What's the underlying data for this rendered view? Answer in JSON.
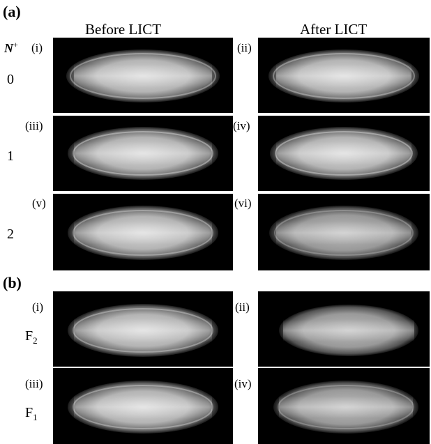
{
  "figure": {
    "panel_a": {
      "letter": "(a)",
      "column_headers": {
        "before": "Before LICT",
        "after": "After LICT"
      },
      "row_axis_label": {
        "main": "N",
        "sup": "+"
      },
      "rows": [
        {
          "value": "0",
          "left_tag": "(i)",
          "right_tag": "(ii)"
        },
        {
          "value": "1",
          "left_tag": "(iii)",
          "right_tag": "(iv)"
        },
        {
          "value": "2",
          "left_tag": "(v)",
          "right_tag": "(vi)"
        }
      ]
    },
    "panel_b": {
      "letter": "(b)",
      "rows": [
        {
          "label_main": "F",
          "label_sub": "2",
          "left_tag": "(i)",
          "right_tag": "(ii)"
        },
        {
          "label_main": "F",
          "label_sub": "1",
          "left_tag": "(iii)",
          "right_tag": "(iv)"
        }
      ]
    }
  }
}
